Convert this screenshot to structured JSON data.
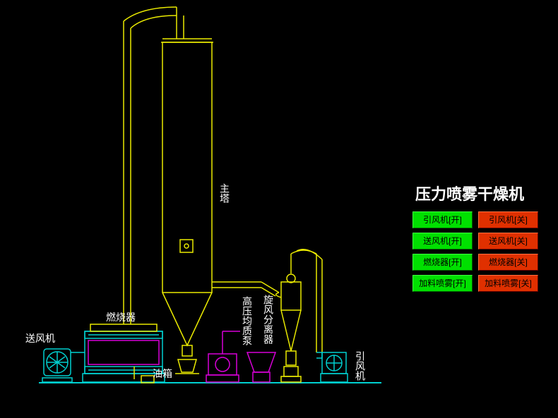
{
  "title": "压力喷雾干燥机",
  "labels": {
    "blower_in": "送风机",
    "burner": "燃烧器",
    "oil_tank": "油箱",
    "main_tower": "主塔",
    "pump": "高压均质泵",
    "cyclone": "旋风分离器",
    "blower_out": "引风机"
  },
  "buttons": [
    {
      "label": "引风机[开]",
      "state": "on"
    },
    {
      "label": "引风机[关]",
      "state": "off"
    },
    {
      "label": "送风机[开]",
      "state": "on"
    },
    {
      "label": "送风机[关]",
      "state": "off"
    },
    {
      "label": "燃烧器[开]",
      "state": "on"
    },
    {
      "label": "燃烧器[关]",
      "state": "off"
    },
    {
      "label": "加料喷雾[开]",
      "state": "on"
    },
    {
      "label": "加料喷雾[关]",
      "state": "off"
    }
  ],
  "colors": {
    "yellow": "#eaea00",
    "cyan": "#00d0d0",
    "magenta": "#d800d8",
    "white": "#ffffff",
    "green_btn": "#00e000",
    "red_btn": "#e03000",
    "bg": "#000000"
  }
}
